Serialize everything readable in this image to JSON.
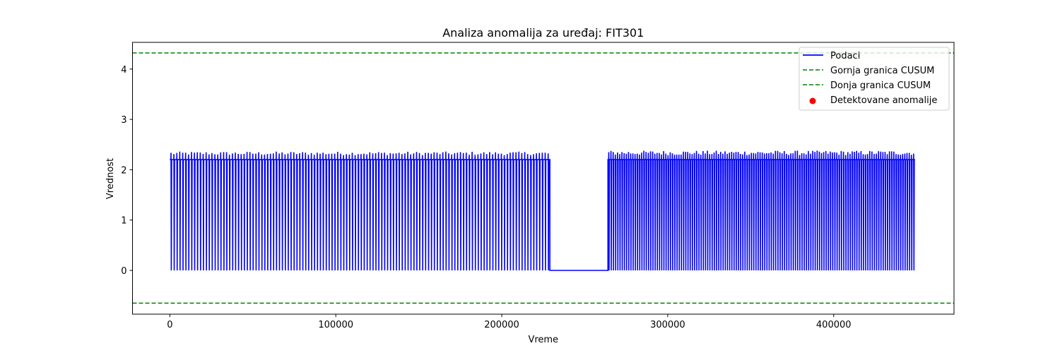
{
  "chart_data": {
    "type": "line",
    "title": "Analiza anomalija za uređaj: FIT301",
    "xlabel": "Vreme",
    "ylabel": "Vrednost",
    "xlim": [
      -22500,
      472500
    ],
    "ylim": [
      -0.87,
      4.53
    ],
    "xticks": [
      0,
      100000,
      200000,
      300000,
      400000
    ],
    "xtick_labels": [
      "0",
      "100000",
      "200000",
      "300000",
      "400000"
    ],
    "yticks": [
      0,
      1,
      2,
      3,
      4
    ],
    "ytick_labels": [
      "0",
      "1",
      "2",
      "3",
      "4"
    ],
    "grid": false,
    "legend_position": "top-right",
    "series": [
      {
        "name": "Podaci",
        "kind": "line",
        "color": "#0000ff",
        "baseline": 2.2,
        "low": 0,
        "description_points": "oscillating signal between ~0 and ~2.2-2.36",
        "segments": [
          {
            "x_start": 0,
            "x_end": 229000,
            "pulse_count": 130,
            "peak_min": 2.29,
            "peak_max": 2.36
          },
          {
            "x_start": 229000,
            "x_end": 264000,
            "value": 0
          },
          {
            "x_start": 264000,
            "x_end": 449000,
            "pulse_count": 140,
            "peak_min": 2.29,
            "peak_max": 2.38
          }
        ]
      },
      {
        "name": "Gornja granica CUSUM",
        "kind": "hline",
        "value": 4.32,
        "color": "#008000",
        "style": "dashed"
      },
      {
        "name": "Donja granica CUSUM",
        "kind": "hline",
        "value": -0.65,
        "color": "#008000",
        "style": "dashed"
      },
      {
        "name": "Detektovane anomalije",
        "kind": "scatter",
        "color": "#ff0000",
        "points": []
      }
    ]
  }
}
